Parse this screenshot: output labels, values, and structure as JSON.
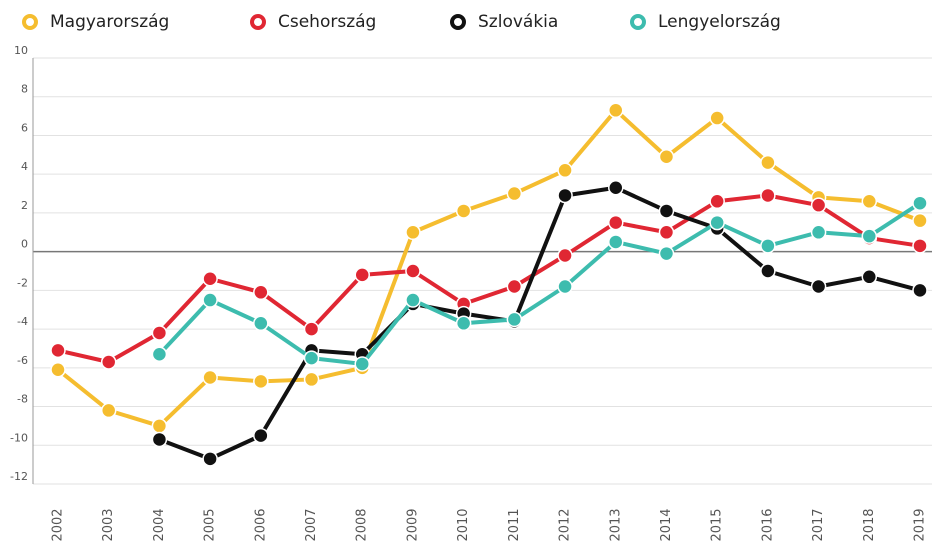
{
  "chart_data": {
    "type": "line",
    "categories": [
      "2002",
      "2003",
      "2004",
      "2005",
      "2006",
      "2007",
      "2008",
      "2009",
      "2010",
      "2011",
      "2012",
      "2013",
      "2014",
      "2015",
      "2016",
      "2017",
      "2018",
      "2019"
    ],
    "series": [
      {
        "name": "Magyarország",
        "color": "#f5bd2f",
        "values": [
          -6.1,
          -8.2,
          -9.0,
          -6.5,
          -6.7,
          -6.6,
          -6.0,
          1.0,
          2.1,
          3.0,
          4.2,
          7.3,
          4.9,
          6.9,
          4.6,
          2.8,
          2.6,
          1.6
        ]
      },
      {
        "name": "Csehország",
        "color": "#e02733",
        "values": [
          -5.1,
          -5.7,
          -4.2,
          -1.4,
          -2.1,
          -4.0,
          -1.2,
          -1.0,
          -2.7,
          -1.8,
          -0.2,
          1.5,
          1.0,
          2.6,
          2.9,
          2.4,
          0.7,
          0.3
        ]
      },
      {
        "name": "Szlovákia",
        "color": "#111111",
        "values": [
          null,
          null,
          -9.7,
          -10.7,
          -9.5,
          -5.1,
          -5.3,
          -2.7,
          -3.2,
          -3.6,
          2.9,
          3.3,
          2.1,
          1.2,
          -1.0,
          -1.8,
          -1.3,
          -2.0
        ]
      },
      {
        "name": "Lengyelország",
        "color": "#3dbcae",
        "values": [
          null,
          null,
          -5.3,
          -2.5,
          -3.7,
          -5.5,
          -5.8,
          -2.5,
          -3.7,
          -3.5,
          -1.8,
          0.5,
          -0.1,
          1.5,
          0.3,
          1.0,
          0.8,
          2.5
        ]
      }
    ],
    "ylim": [
      -12,
      10
    ],
    "yticks": [
      -12,
      -10,
      -8,
      -6,
      -4,
      -2,
      0,
      2,
      4,
      6,
      8,
      10
    ],
    "grid": true
  }
}
